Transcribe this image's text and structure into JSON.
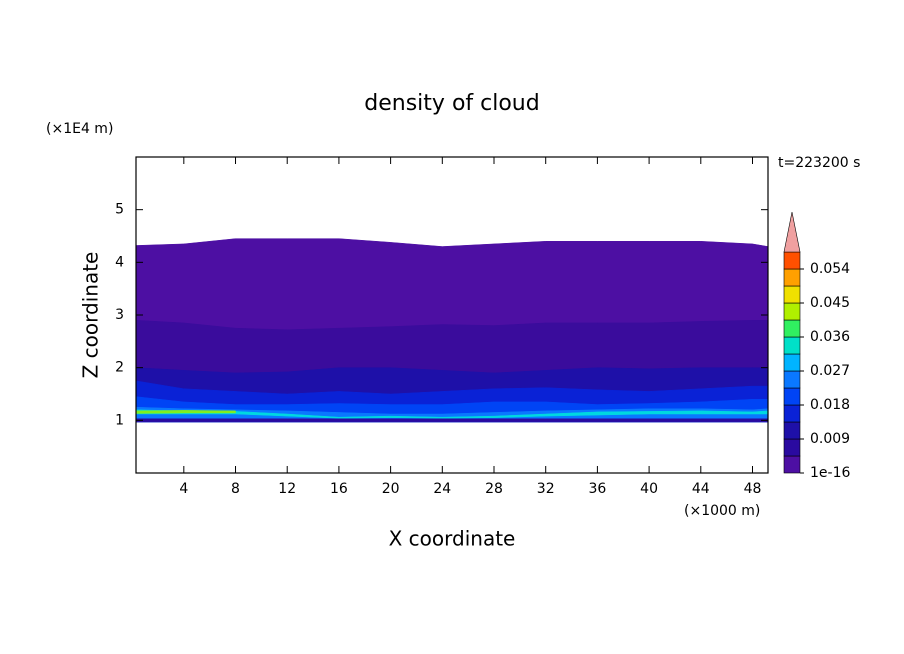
{
  "chart_data": {
    "type": "contour",
    "title": "density of cloud",
    "x_label": "X coordinate",
    "x_unit": "(×1000 m)",
    "y_label": "Z coordinate",
    "y_unit": "(×1E4 m)",
    "time_label": "t=223200 s",
    "xlim": [
      0.3,
      49.2
    ],
    "xticks": [
      4,
      8,
      12,
      16,
      20,
      24,
      28,
      32,
      36,
      40,
      44,
      48
    ],
    "ylim": [
      0,
      6
    ],
    "yticks": [
      1,
      2,
      3,
      4,
      5
    ],
    "x": [
      0.3,
      4,
      8,
      12,
      16,
      20,
      24,
      28,
      32,
      36,
      40,
      44,
      48,
      49.2
    ],
    "layers": [
      {
        "color": "#4d0fa3",
        "base": [
          0.97,
          0.97,
          0.97,
          0.97,
          0.97,
          0.97,
          0.97,
          0.97,
          0.97,
          0.97,
          0.97,
          0.97,
          0.97,
          0.97
        ],
        "top": [
          4.32,
          4.35,
          4.45,
          4.45,
          4.45,
          4.38,
          4.3,
          4.35,
          4.4,
          4.4,
          4.4,
          4.4,
          4.35,
          4.3
        ]
      },
      {
        "color": "#3a0c9c",
        "base": [
          0.97,
          0.97,
          0.97,
          0.97,
          0.97,
          0.97,
          0.97,
          0.97,
          0.97,
          0.97,
          0.97,
          0.97,
          0.97,
          0.97
        ],
        "top": [
          2.9,
          2.85,
          2.75,
          2.72,
          2.75,
          2.78,
          2.82,
          2.8,
          2.85,
          2.85,
          2.85,
          2.88,
          2.9,
          2.9
        ]
      },
      {
        "color": "#1e10a8",
        "base": [
          0.97,
          0.97,
          0.97,
          0.97,
          0.97,
          0.97,
          0.97,
          0.97,
          0.97,
          0.97,
          0.97,
          0.97,
          0.97,
          0.97
        ],
        "top": [
          2.0,
          1.95,
          1.9,
          1.92,
          2.0,
          2.0,
          1.95,
          1.9,
          1.95,
          2.0,
          1.98,
          2.0,
          2.0,
          2.0
        ]
      },
      {
        "color": "#0a22d6",
        "base": [
          0.97,
          0.97,
          0.97,
          0.97,
          0.97,
          0.97,
          0.97,
          0.97,
          0.97,
          0.97,
          0.97,
          0.97,
          0.97,
          0.97
        ],
        "top": [
          1.75,
          1.6,
          1.55,
          1.5,
          1.55,
          1.5,
          1.55,
          1.6,
          1.62,
          1.58,
          1.55,
          1.6,
          1.65,
          1.65
        ]
      },
      {
        "color": "#0044f5",
        "base": [
          0.97,
          0.97,
          0.97,
          0.97,
          0.97,
          0.97,
          0.97,
          0.97,
          0.97,
          0.97,
          0.97,
          0.97,
          0.97,
          0.97
        ],
        "top": [
          1.45,
          1.35,
          1.3,
          1.3,
          1.32,
          1.3,
          1.3,
          1.35,
          1.35,
          1.3,
          1.32,
          1.35,
          1.4,
          1.4
        ]
      },
      {
        "color": "#0a78ff",
        "base": [
          0.97,
          0.97,
          0.97,
          0.97,
          0.97,
          0.97,
          0.97,
          0.97,
          0.97,
          0.97,
          0.97,
          0.97,
          0.97,
          0.97
        ],
        "top": [
          1.25,
          1.22,
          1.2,
          1.18,
          1.15,
          1.12,
          1.12,
          1.15,
          1.18,
          1.2,
          1.22,
          1.22,
          1.2,
          1.22
        ]
      },
      {
        "color": "#00d8e0",
        "base": [
          1.12,
          1.12,
          1.12,
          1.08,
          1.04,
          1.05,
          1.04,
          1.05,
          1.08,
          1.1,
          1.12,
          1.12,
          1.12,
          1.12
        ],
        "top": [
          1.2,
          1.18,
          1.17,
          1.12,
          1.06,
          1.08,
          1.06,
          1.08,
          1.12,
          1.16,
          1.17,
          1.18,
          1.16,
          1.18
        ]
      },
      {
        "color": "#80ee20",
        "base": [
          1.13,
          1.14,
          1.14,
          null,
          null,
          null,
          null,
          null,
          null,
          null,
          null,
          null,
          null,
          null
        ],
        "top": [
          1.18,
          1.19,
          1.18,
          null,
          null,
          null,
          null,
          null,
          null,
          null,
          null,
          null,
          null,
          null
        ]
      },
      {
        "color": "#2a0aa0",
        "base": [
          0.97,
          0.97,
          0.97,
          0.97,
          0.97,
          0.97,
          0.97,
          0.97,
          0.97,
          0.97,
          0.97,
          0.97,
          0.97,
          0.97
        ],
        "top": [
          1.03,
          1.03,
          1.03,
          1.03,
          1.03,
          1.03,
          1.03,
          1.03,
          1.03,
          1.03,
          1.03,
          1.03,
          1.03,
          1.03
        ]
      }
    ],
    "colorbar": {
      "bounds": [
        0,
        0.0045,
        0.009,
        0.0135,
        0.018,
        0.0225,
        0.027,
        0.0315,
        0.036,
        0.0405,
        0.045,
        0.0495,
        0.054,
        0.0585
      ],
      "colors": [
        "#4d0fa3",
        "#2a0aa0",
        "#1e10a8",
        "#0a22d6",
        "#0044f5",
        "#0a78ff",
        "#00b4ff",
        "#00e0c8",
        "#30f060",
        "#b0f000",
        "#f0e000",
        "#ffa000",
        "#ff5000"
      ],
      "over_color": "#f0a0a0",
      "ticks": [
        {
          "value": 1e-16,
          "label": "1e-16"
        },
        0.009,
        0.018,
        0.027,
        0.036,
        0.045,
        0.054
      ]
    }
  }
}
